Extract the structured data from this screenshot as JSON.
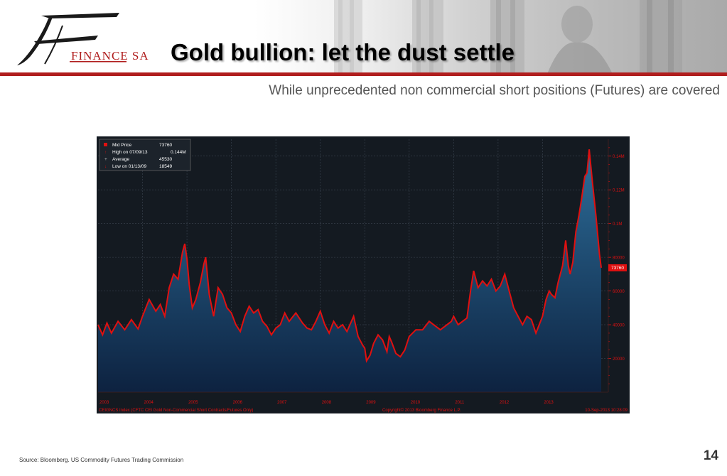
{
  "header": {
    "logo_text": "FINANCE SA",
    "title": "Gold bullion: let the dust settle"
  },
  "subtitle": "While unprecedented non commercial short positions (Futures) are covered",
  "chart_data": {
    "type": "area",
    "y_axis_side": "right",
    "ylim": [
      0,
      150000
    ],
    "y_ticks": [
      "20000",
      "40000",
      "60000",
      "80000",
      "0.1M",
      "0.12M",
      "0.14M"
    ],
    "x_ticks": [
      "2003",
      "2004",
      "2005",
      "2006",
      "2007",
      "2008",
      "2009",
      "2010",
      "2011",
      "2012",
      "2013"
    ],
    "grid": true,
    "legend_position": "top-left",
    "legend": [
      {
        "label": "Mid Price",
        "value": "73760"
      },
      {
        "label": "High on 07/09/13",
        "value": "0.144M"
      },
      {
        "label": "Average",
        "value": "45530"
      },
      {
        "label": "Low on 01/13/09",
        "value": "18549"
      }
    ],
    "last_value_label": "73760",
    "footer_left": "CEIGNCS Index (CFTC CEI Gold Non-Commercial Short Contracts/Futures Only)",
    "footer_center": "Copyright© 2013 Bloomberg Finance L.P.",
    "footer_right": "10-Sep-2013 10:28:09",
    "colors": {
      "line": "#e01010",
      "fill_top": "#2d6e9a",
      "fill_bottom": "#0d2240",
      "background": "#141a21"
    },
    "series": [
      {
        "values": [
          [
            2003.0,
            40000
          ],
          [
            2003.1,
            34000
          ],
          [
            2003.2,
            41000
          ],
          [
            2003.3,
            35000
          ],
          [
            2003.45,
            42000
          ],
          [
            2003.6,
            37000
          ],
          [
            2003.75,
            43000
          ],
          [
            2003.9,
            37500
          ],
          [
            2004.0,
            45000
          ],
          [
            2004.15,
            55000
          ],
          [
            2004.3,
            48000
          ],
          [
            2004.4,
            52000
          ],
          [
            2004.5,
            45000
          ],
          [
            2004.6,
            62000
          ],
          [
            2004.7,
            70000
          ],
          [
            2004.8,
            67000
          ],
          [
            2004.9,
            83000
          ],
          [
            2004.95,
            88000
          ],
          [
            2005.0,
            79000
          ],
          [
            2005.05,
            64000
          ],
          [
            2005.12,
            50000
          ],
          [
            2005.2,
            55000
          ],
          [
            2005.3,
            65000
          ],
          [
            2005.38,
            76000
          ],
          [
            2005.42,
            80000
          ],
          [
            2005.5,
            58000
          ],
          [
            2005.6,
            45000
          ],
          [
            2005.7,
            62000
          ],
          [
            2005.8,
            58000
          ],
          [
            2005.9,
            50000
          ],
          [
            2006.0,
            47000
          ],
          [
            2006.1,
            40000
          ],
          [
            2006.2,
            36000
          ],
          [
            2006.3,
            45000
          ],
          [
            2006.4,
            51000
          ],
          [
            2006.5,
            47000
          ],
          [
            2006.6,
            49000
          ],
          [
            2006.7,
            42000
          ],
          [
            2006.8,
            39000
          ],
          [
            2006.9,
            34000
          ],
          [
            2007.0,
            38000
          ],
          [
            2007.1,
            40000
          ],
          [
            2007.2,
            47000
          ],
          [
            2007.3,
            42000
          ],
          [
            2007.45,
            47000
          ],
          [
            2007.6,
            41000
          ],
          [
            2007.7,
            38000
          ],
          [
            2007.8,
            37000
          ],
          [
            2007.9,
            42000
          ],
          [
            2008.0,
            48000
          ],
          [
            2008.1,
            40000
          ],
          [
            2008.2,
            35000
          ],
          [
            2008.3,
            42000
          ],
          [
            2008.4,
            38000
          ],
          [
            2008.5,
            40000
          ],
          [
            2008.6,
            36000
          ],
          [
            2008.75,
            45000
          ],
          [
            2008.85,
            33000
          ],
          [
            2008.95,
            28000
          ],
          [
            2009.0,
            26000
          ],
          [
            2009.04,
            18549
          ],
          [
            2009.12,
            22000
          ],
          [
            2009.2,
            29000
          ],
          [
            2009.3,
            34000
          ],
          [
            2009.4,
            31000
          ],
          [
            2009.5,
            24000
          ],
          [
            2009.55,
            33000
          ],
          [
            2009.6,
            30000
          ],
          [
            2009.7,
            23000
          ],
          [
            2009.8,
            21000
          ],
          [
            2009.9,
            25000
          ],
          [
            2010.0,
            33000
          ],
          [
            2010.15,
            37000
          ],
          [
            2010.3,
            37000
          ],
          [
            2010.45,
            42000
          ],
          [
            2010.55,
            40000
          ],
          [
            2010.7,
            37000
          ],
          [
            2010.85,
            40000
          ],
          [
            2010.95,
            42000
          ],
          [
            2011.0,
            45000
          ],
          [
            2011.1,
            40000
          ],
          [
            2011.2,
            42000
          ],
          [
            2011.3,
            44000
          ],
          [
            2011.38,
            60000
          ],
          [
            2011.45,
            72000
          ],
          [
            2011.55,
            62000
          ],
          [
            2011.65,
            66000
          ],
          [
            2011.75,
            63000
          ],
          [
            2011.85,
            67000
          ],
          [
            2011.95,
            60000
          ],
          [
            2012.05,
            63000
          ],
          [
            2012.15,
            70000
          ],
          [
            2012.25,
            60000
          ],
          [
            2012.35,
            50000
          ],
          [
            2012.45,
            45000
          ],
          [
            2012.55,
            40000
          ],
          [
            2012.65,
            45000
          ],
          [
            2012.75,
            43000
          ],
          [
            2012.85,
            35000
          ],
          [
            2013.0,
            45000
          ],
          [
            2013.08,
            55000
          ],
          [
            2013.15,
            60000
          ],
          [
            2013.2,
            58000
          ],
          [
            2013.28,
            56000
          ],
          [
            2013.35,
            65000
          ],
          [
            2013.45,
            75000
          ],
          [
            2013.52,
            90000
          ],
          [
            2013.58,
            75000
          ],
          [
            2013.62,
            70000
          ],
          [
            2013.68,
            77000
          ],
          [
            2013.75,
            95000
          ],
          [
            2013.82,
            105000
          ],
          [
            2013.88,
            115000
          ],
          [
            2013.95,
            128000
          ],
          [
            2014.0,
            130000
          ],
          [
            2014.05,
            144000
          ],
          [
            2014.12,
            125000
          ],
          [
            2014.2,
            105000
          ],
          [
            2014.28,
            82000
          ],
          [
            2014.32,
            73760
          ]
        ]
      }
    ]
  },
  "source": "Source:  Bloomberg. US Commodity Futures Trading Commission",
  "page_number": "14"
}
